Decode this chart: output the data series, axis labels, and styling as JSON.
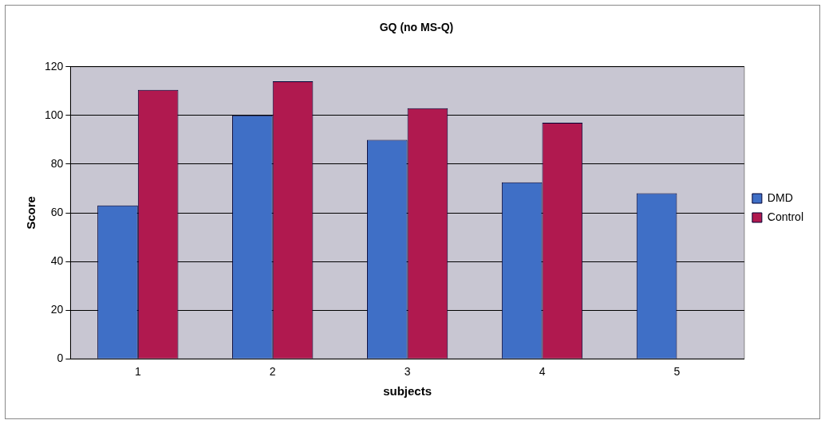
{
  "chart_data": {
    "type": "bar",
    "title": "GQ (no MS-Q)",
    "xlabel": "subjects",
    "ylabel": "Score",
    "categories": [
      "1",
      "2",
      "3",
      "4",
      "5"
    ],
    "series": [
      {
        "name": "DMD",
        "color": "#3f6fc6",
        "values": [
          63,
          100,
          90,
          72.5,
          68
        ]
      },
      {
        "name": "Control",
        "color": "#b0194f",
        "values": [
          110.5,
          114,
          103,
          97,
          null
        ]
      }
    ],
    "ylim": [
      0,
      120
    ],
    "yticks": [
      0,
      20,
      40,
      60,
      80,
      100,
      120
    ],
    "grid": "y",
    "legend": "right"
  }
}
